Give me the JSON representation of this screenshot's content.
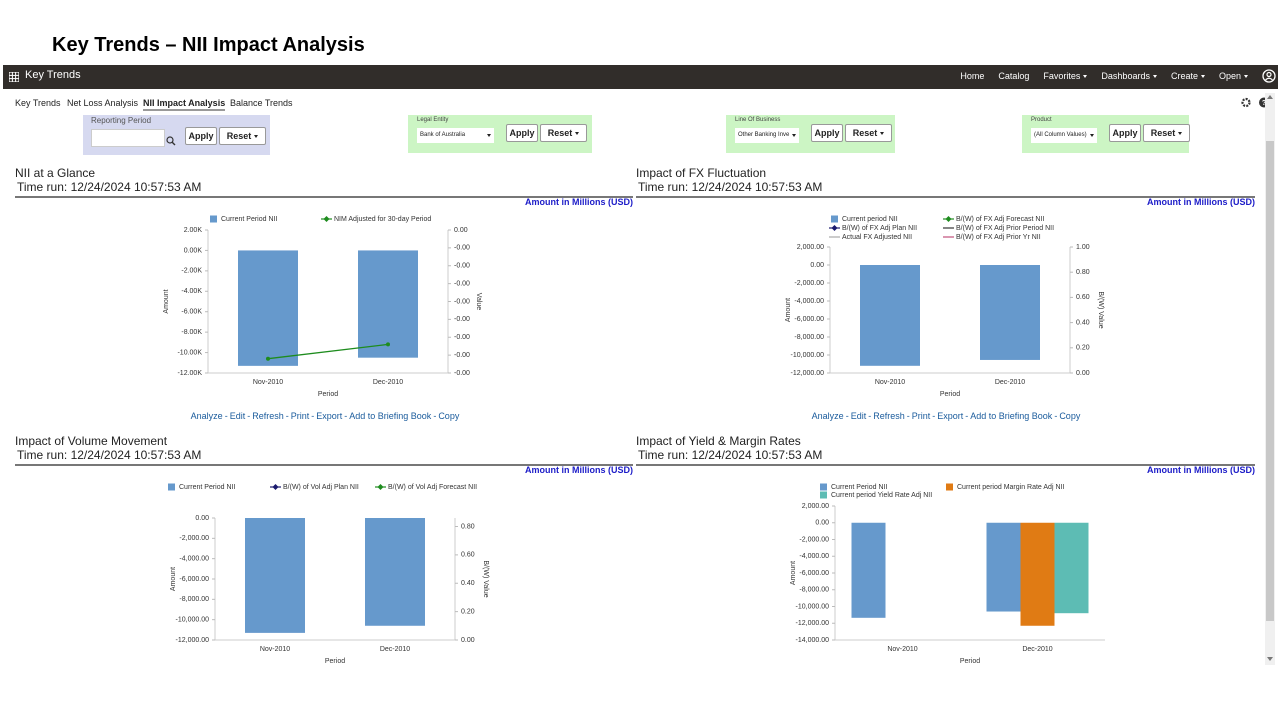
{
  "page_title": "Key Trends – NII Impact Analysis",
  "navbar": {
    "app": "Key Trends",
    "links": [
      "Home",
      "Catalog",
      "Favorites",
      "Dashboards",
      "Create",
      "Open"
    ]
  },
  "tabs": [
    "Key Trends",
    "Net Loss Analysis",
    "NII Impact Analysis",
    "Balance Trends"
  ],
  "active_tab": 2,
  "buttons": [
    "Apply",
    "Reset"
  ],
  "filters": [
    {
      "label": "Reporting Period"
    },
    {
      "label": "Legal Entity",
      "value": "Bank of Australia"
    },
    {
      "label": "Line Of Business",
      "value": "Other Banking Inve"
    },
    {
      "label": "Product",
      "value": "(All Column Values)"
    }
  ],
  "actions": [
    "Analyze",
    "Edit",
    "Refresh",
    "Print",
    "Export",
    "Add to Briefing Book",
    "Copy"
  ],
  "panels": [
    {
      "title": "NII at a Glance",
      "time_run": "Time run: 12/24/2024 10:57:53 AM",
      "unit_note": "Amount in Millions (USD)",
      "show_actions": true,
      "chart": {
        "type": "bar",
        "categories": [
          "Nov-2010",
          "Dec-2010"
        ],
        "xlabel": "Period",
        "ylabel": "Amount",
        "y2label": "Value",
        "ylim": [
          -12000,
          2000
        ],
        "yticks": [
          {
            "value": 2000,
            "label": "2.00K"
          },
          {
            "value": 0,
            "label": "0.00K"
          },
          {
            "value": -2000,
            "label": "-2.00K"
          },
          {
            "value": -4000,
            "label": "-4.00K"
          },
          {
            "value": -6000,
            "label": "-6.00K"
          },
          {
            "value": -8000,
            "label": "-8.00K"
          },
          {
            "value": -10000,
            "label": "-10.00K"
          },
          {
            "value": -12000,
            "label": "-12.00K"
          }
        ],
        "y2lim": [
          -0.004,
          0
        ],
        "y2ticks": [
          {
            "value": 0,
            "label": "0.00"
          },
          {
            "value": -0.0005,
            "label": "-0.00"
          },
          {
            "value": -0.001,
            "label": "-0.00"
          },
          {
            "value": -0.0015,
            "label": "-0.00"
          },
          {
            "value": -0.002,
            "label": "-0.00"
          },
          {
            "value": -0.0025,
            "label": "-0.00"
          },
          {
            "value": -0.003,
            "label": "-0.00"
          },
          {
            "value": -0.0035,
            "label": "-0.00"
          },
          {
            "value": -0.004,
            "label": "-0.00"
          }
        ],
        "series": [
          {
            "name": "Current Period NII",
            "type": "bar",
            "color": "#6699cc",
            "values": [
              -11300,
              -10500
            ]
          },
          {
            "name": "NIM Adjusted for 30-day Period",
            "type": "line",
            "marker": "diamond",
            "axis": "y2",
            "color": "#1e8c1e",
            "values": [
              -0.0036,
              -0.0032
            ]
          }
        ]
      }
    },
    {
      "title": "Impact of FX Fluctuation",
      "time_run": "Time run: 12/24/2024 10:57:53 AM",
      "unit_note": "Amount in Millions (USD)",
      "show_actions": true,
      "chart": {
        "type": "bar",
        "categories": [
          "Nov-2010",
          "Dec-2010"
        ],
        "xlabel": "Period",
        "ylabel": "Amount",
        "y2label": "B/(W) Value",
        "ylim": [
          -12000,
          2000
        ],
        "yticks": [
          {
            "value": 2000,
            "label": "2,000.00"
          },
          {
            "value": 0,
            "label": "0.00"
          },
          {
            "value": -2000,
            "label": "-2,000.00"
          },
          {
            "value": -4000,
            "label": "-4,000.00"
          },
          {
            "value": -6000,
            "label": "-6,000.00"
          },
          {
            "value": -8000,
            "label": "-8,000.00"
          },
          {
            "value": -10000,
            "label": "-10,000.00"
          },
          {
            "value": -12000,
            "label": "-12,000.00"
          }
        ],
        "y2lim": [
          0,
          1
        ],
        "y2ticks": [
          {
            "value": 0,
            "label": "0.00"
          },
          {
            "value": 0.2,
            "label": "0.20"
          },
          {
            "value": 0.4,
            "label": "0.40"
          },
          {
            "value": 0.6,
            "label": "0.60"
          },
          {
            "value": 0.8,
            "label": "0.80"
          },
          {
            "value": 1,
            "label": "1.00"
          }
        ],
        "series": [
          {
            "name": "Current period NII",
            "type": "bar",
            "color": "#6699cc",
            "values": [
              -11200,
              -10550
            ]
          },
          {
            "name": "B/(W) of FX Adj Forecast NII",
            "type": "line",
            "marker": "diamond",
            "axis": "y2",
            "color": "#1e8c1e",
            "values": [
              null,
              null
            ]
          },
          {
            "name": "B/(W) of FX Adj Plan NII",
            "type": "line",
            "marker": "diamond",
            "axis": "y2",
            "color": "#1a1a6e",
            "values": [
              null,
              null
            ]
          },
          {
            "name": "B/(W) of FX Adj Prior Period NII",
            "type": "line",
            "axis": "y2",
            "color": "#333333",
            "values": [
              null,
              null
            ]
          },
          {
            "name": "Actual FX Adjusted NII",
            "type": "line",
            "axis": "y2",
            "color": "#aaaaaa",
            "values": [
              null,
              null
            ]
          },
          {
            "name": "B/(W) of FX Adj Prior Yr NII",
            "type": "line",
            "axis": "y2",
            "color": "#c0507a",
            "values": [
              null,
              null
            ]
          }
        ]
      }
    },
    {
      "title": "Impact of Volume Movement",
      "time_run": "Time run: 12/24/2024 10:57:53 AM",
      "unit_note": "Amount in Millions (USD)",
      "show_actions": false,
      "chart": {
        "type": "bar",
        "categories": [
          "Nov-2010",
          "Dec-2010"
        ],
        "xlabel": "Period",
        "ylabel": "Amount",
        "y2label": "B/(W) Value",
        "ylim": [
          -12000,
          0
        ],
        "yticks": [
          {
            "value": 0,
            "label": "0.00"
          },
          {
            "value": -2000,
            "label": "-2,000.00"
          },
          {
            "value": -4000,
            "label": "-4,000.00"
          },
          {
            "value": -6000,
            "label": "-6,000.00"
          },
          {
            "value": -8000,
            "label": "-8,000.00"
          },
          {
            "value": -10000,
            "label": "-10,000.00"
          },
          {
            "value": -12000,
            "label": "-12,000.00"
          }
        ],
        "y2lim": [
          0,
          0.86
        ],
        "y2ticks": [
          {
            "value": 0,
            "label": "0.00"
          },
          {
            "value": 0.2,
            "label": "0.20"
          },
          {
            "value": 0.4,
            "label": "0.40"
          },
          {
            "value": 0.6,
            "label": "0.60"
          },
          {
            "value": 0.8,
            "label": "0.80"
          }
        ],
        "series": [
          {
            "name": "Current Period NII",
            "type": "bar",
            "color": "#6699cc",
            "values": [
              -11300,
              -10600
            ]
          },
          {
            "name": "B/(W) of Vol Adj Plan NII",
            "type": "line",
            "marker": "diamond",
            "axis": "y2",
            "color": "#1a1a6e",
            "values": [
              null,
              null
            ]
          },
          {
            "name": "B/(W) of Vol Adj Forecast NII",
            "type": "line",
            "marker": "diamond",
            "axis": "y2",
            "color": "#1e8c1e",
            "values": [
              null,
              null
            ]
          }
        ]
      }
    },
    {
      "title": "Impact of Yield & Margin Rates",
      "time_run": "Time run: 12/24/2024 10:57:53 AM",
      "unit_note": "Amount in Millions (USD)",
      "show_actions": false,
      "chart": {
        "type": "bar",
        "categories": [
          "Nov-2010",
          "Dec-2010"
        ],
        "xlabel": "Period",
        "ylabel": "Amount",
        "ylim": [
          -14000,
          2000
        ],
        "yticks": [
          {
            "value": 2000,
            "label": "2,000.00"
          },
          {
            "value": 0,
            "label": "0.00"
          },
          {
            "value": -2000,
            "label": "-2,000.00"
          },
          {
            "value": -4000,
            "label": "-4,000.00"
          },
          {
            "value": -6000,
            "label": "-6,000.00"
          },
          {
            "value": -8000,
            "label": "-8,000.00"
          },
          {
            "value": -10000,
            "label": "-10,000.00"
          },
          {
            "value": -12000,
            "label": "-12,000.00"
          },
          {
            "value": -14000,
            "label": "-14,000.00"
          }
        ],
        "series": [
          {
            "name": "Current Period NII",
            "type": "bar",
            "color": "#6699cc",
            "values": [
              -11350,
              -10600
            ]
          },
          {
            "name": "Current period Margin Rate Adj NII",
            "type": "bar",
            "color": "#e07b14",
            "values": [
              null,
              -12300
            ]
          },
          {
            "name": "Current period Yield Rate Adj NII",
            "type": "bar",
            "color": "#5dbcb4",
            "values": [
              null,
              -10800
            ]
          }
        ]
      }
    }
  ]
}
